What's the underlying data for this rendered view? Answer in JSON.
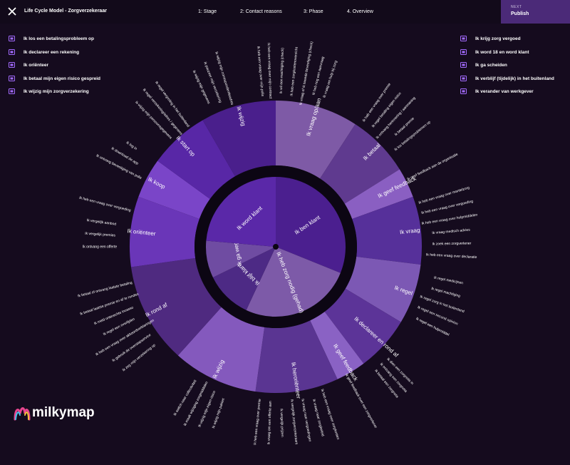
{
  "topbar": {
    "title": "Life Cycle Model - Zorgverzekeraar",
    "steps": [
      "1: Stage",
      "2: Contact reasons",
      "3: Phase",
      "4. Overview"
    ],
    "next_small": "NEXT",
    "next_label": "Publish"
  },
  "legend_left": [
    {
      "icon": "money-icon",
      "label": "Ik los een betalingsprobleem op"
    },
    {
      "icon": "document-icon",
      "label": "Ik declareer een rekening"
    },
    {
      "icon": "signpost-icon",
      "label": "Ik oriënteer"
    },
    {
      "icon": "cards-icon",
      "label": "Ik betaal mijn eigen risico gespreid"
    },
    {
      "icon": "id-card-icon",
      "label": "Ik wijzig mijn zorgverzekering"
    }
  ],
  "legend_right": [
    {
      "icon": "card-icon",
      "label": "Ik krijg zorg vergoed"
    },
    {
      "icon": "cake-icon",
      "label": "Ik word 18 en word klant"
    },
    {
      "icon": "split-icon",
      "label": "Ik ga scheiden"
    },
    {
      "icon": "globe-icon",
      "label": "Ik verblijf (tijdelijk) in het buitenland"
    },
    {
      "icon": "person-icon",
      "label": "Ik verander van werkgever"
    }
  ],
  "brand": "milkymap",
  "colors": {
    "inner": "#5a2a9a",
    "ring": "#0c0613",
    "mid_a": "#7a4fb0",
    "mid_b": "#5b30a0",
    "mid_c": "#4d2a85"
  },
  "inner_ring": [
    {
      "label": "Ik ben klant",
      "color": "#4b1f8f",
      "start": 0,
      "end": 112
    },
    {
      "label": "Ik heb zorg nodig (gehad)",
      "color": "#7d5aa8",
      "start": 112,
      "end": 205
    },
    {
      "label": "Ik blijf klant",
      "color": "#4d2a85",
      "start": 205,
      "end": 244
    },
    {
      "label": "Ik ga weg",
      "color": "#6f4ca2",
      "start": 244,
      "end": 275
    },
    {
      "label": "Ik word klant",
      "color": "#5a28a8",
      "start": 275,
      "end": 360
    }
  ],
  "outer_ring": [
    {
      "label": "Ik vraag op/aan",
      "color": "#7e5aa6",
      "start": 0,
      "end": 33
    },
    {
      "label": "Ik betaal",
      "color": "#5f3a8f",
      "start": 33,
      "end": 58
    },
    {
      "label": "Ik geef feedback",
      "color": "#8a5fc2",
      "start": 58,
      "end": 70
    },
    {
      "label": "Ik vraag",
      "color": "#56309a",
      "start": 70,
      "end": 97
    },
    {
      "label": "Ik regel",
      "color": "#7c58b4",
      "start": 97,
      "end": 121
    },
    {
      "label": "Ik declareer en rond af",
      "color": "#5c3498",
      "start": 121,
      "end": 143
    },
    {
      "label": "Ik geef feedback",
      "color": "#8a62c4",
      "start": 143,
      "end": 155
    },
    {
      "label": "Ik heroriënteer",
      "color": "#5a3592",
      "start": 155,
      "end": 188
    },
    {
      "label": "Ik wijzig",
      "color": "#8459bd",
      "start": 188,
      "end": 222
    },
    {
      "label": "Ik rond af",
      "color": "#4f2a80",
      "start": 222,
      "end": 262
    },
    {
      "label": "Ik oriënteer",
      "color": "#6a36b8",
      "start": 262,
      "end": 290
    },
    {
      "label": "Ik koop",
      "color": "#7a45c8",
      "start": 290,
      "end": 306
    },
    {
      "label": "Ik start op",
      "color": "#5827a6",
      "start": 306,
      "end": 330
    },
    {
      "label": "Ik wijzig",
      "color": "#4a1f8c",
      "start": 330,
      "end": 360
    }
  ],
  "outer_labels": [
    {
      "text": "Ik geef feedback aan de organisatie",
      "angle": 63
    },
    {
      "text": "Ik heb een vraag over mantelzorg",
      "angle": 73
    },
    {
      "text": "Ik heb een vraag over vergoeding",
      "angle": 77
    },
    {
      "text": "Ik heb een vraag over hulpmiddelen",
      "angle": 81
    },
    {
      "text": "Ik vraag medisch advies",
      "angle": 85
    },
    {
      "text": "Ik zoek een zorgverlener",
      "angle": 89
    },
    {
      "text": "Ik heb een vraag over declaratie",
      "angle": 93
    },
    {
      "text": "Ik regel medicijnen",
      "angle": 101
    },
    {
      "text": "Ik regel machtiging",
      "angle": 105
    },
    {
      "text": "Ik regel zorg in het buitenland",
      "angle": 109
    },
    {
      "text": "Ik regel een second opinion",
      "angle": 113
    },
    {
      "text": "Ik regel een hulpmiddel",
      "angle": 117
    },
    {
      "text": "Ik dien een zorgnota in",
      "angle": 135
    },
    {
      "text": "Ik ontvang een zorgnota",
      "angle": 138
    },
    {
      "text": "Ik betaal een zorgnota",
      "angle": 141
    },
    {
      "text": "Ik geef feedback over een zorgverlener",
      "angle": 151
    },
    {
      "text": "Ik heb een vraag over zorgkosten",
      "angle": 162
    },
    {
      "text": "Ik vraag naar zorgbeleid",
      "angle": 166
    },
    {
      "text": "Ik vraag naar vergoedingen",
      "angle": 170
    },
    {
      "text": "Ik vergelijk zorgverzekeraars",
      "angle": 174
    },
    {
      "text": "Ik vergelijk prijzen",
      "angle": 178
    },
    {
      "text": "Ik vraag om een offerte aan",
      "angle": 182
    },
    {
      "text": "Ik heb een vraag over premie",
      "angle": 186
    },
    {
      "text": "Ik wijzig mijn pakket",
      "angle": 199
    },
    {
      "text": "Ik wijzig mijn eigen risico",
      "angle": 203
    },
    {
      "text": "Ik maak wijziging zorgmiddelen",
      "angle": 207
    },
    {
      "text": "Ik switch naar collectiviteit",
      "angle": 211
    },
    {
      "text": "Ik zeg mijn verzekering op",
      "angle": 231
    },
    {
      "text": "Ik gebruik de overstapservice",
      "angle": 235
    },
    {
      "text": "Ik heb een vraag over akkoordverklaringen",
      "angle": 239
    },
    {
      "text": "Ik regel een overlijden",
      "angle": 243
    },
    {
      "text": "Ik meld onterechte incasso",
      "angle": 247
    },
    {
      "text": "Ik betaal laatste premie en af te ronden",
      "angle": 251
    },
    {
      "text": "Ik betaal of ontvang laatste betaling",
      "angle": 256
    },
    {
      "text": "Ik ontvang een offerte",
      "angle": 270
    },
    {
      "text": "Ik vergelijk premies",
      "angle": 274
    },
    {
      "text": "Ik vergelijk aanbod",
      "angle": 278
    },
    {
      "text": "Ik heb een vraag over vergoeding",
      "angle": 284
    },
    {
      "text": "Ik ontvang bevestiging van polis",
      "angle": 297
    },
    {
      "text": "Ik download de app",
      "angle": 301
    },
    {
      "text": "Ik log in",
      "angle": 305
    },
    {
      "text": "Ik wijzig mijn persoonsgegevens",
      "angle": 316
    },
    {
      "text": "Ik regel verzekering/adres / gegevens",
      "angle": 320
    },
    {
      "text": "Ik regel vergroting in het buitenland",
      "angle": 324
    },
    {
      "text": "Ik wijzig mijn gegevens",
      "angle": 335
    },
    {
      "text": "Ik pauzeer mijn verzekering",
      "angle": 339
    },
    {
      "text": "Ik wijzig mijn correspondentieadres",
      "angle": 343
    },
    {
      "text": "Ik heb een vraag over mijn polis",
      "angle": 355
    },
    {
      "text": "Ik heb een vraag over mijn contract",
      "angle": 358
    },
    {
      "text": "Ik wil een machtiging (check)",
      "angle": 2
    },
    {
      "text": "Ik heb een zorgkostenoverzicht",
      "angle": 6
    },
    {
      "text": "Ik vraag of ik tweede bevestiging (check)",
      "angle": 10
    },
    {
      "text": "Ik heb nog een aanvraag",
      "angle": 14
    },
    {
      "text": "Ik vraag om hulp bij zorg",
      "angle": 18
    },
    {
      "text": "Ik heb een vraag over premie",
      "angle": 35
    },
    {
      "text": "Ik regel betaling eigen risico",
      "angle": 39
    },
    {
      "text": "Ik ontvang herinnering / aanmaning",
      "angle": 43
    },
    {
      "text": "Ik betaal premie",
      "angle": 47
    },
    {
      "text": "Ik los betalingsproblemen op",
      "angle": 51
    }
  ]
}
